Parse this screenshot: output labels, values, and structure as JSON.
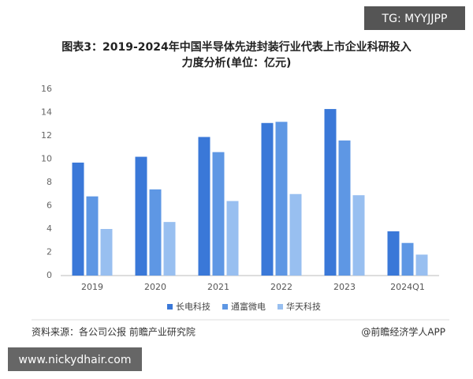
{
  "chart_data": {
    "type": "bar",
    "watermark_top": "TG: MYYJJPP",
    "title": [
      "图表3：2019-2024年中国半导体先进封装行业代表上市企业科研投入",
      "力度分析(单位：亿元)"
    ],
    "categories": [
      "2019",
      "2020",
      "2021",
      "2022",
      "2023",
      "2024Q1"
    ],
    "series": [
      {
        "name": "长电科技",
        "color": "#3a78d8",
        "values": [
          9.7,
          10.2,
          11.9,
          13.1,
          14.3,
          3.8
        ]
      },
      {
        "name": "通富微电",
        "color": "#5e97e4",
        "values": [
          6.8,
          7.4,
          10.6,
          13.2,
          11.6,
          2.8
        ]
      },
      {
        "name": "华天科技",
        "color": "#98bff0",
        "values": [
          4.0,
          4.6,
          6.4,
          7.0,
          6.9,
          1.8
        ]
      }
    ],
    "ylim": [
      0,
      16
    ],
    "yticks": [
      0,
      2,
      4,
      6,
      8,
      10,
      12,
      14,
      16
    ],
    "grid": false,
    "source": "资料来源：各公司公报 前瞻产业研究院",
    "brand": "@前瞻经济学人APP",
    "watermark_bottom": "www.nickydhair.com"
  }
}
